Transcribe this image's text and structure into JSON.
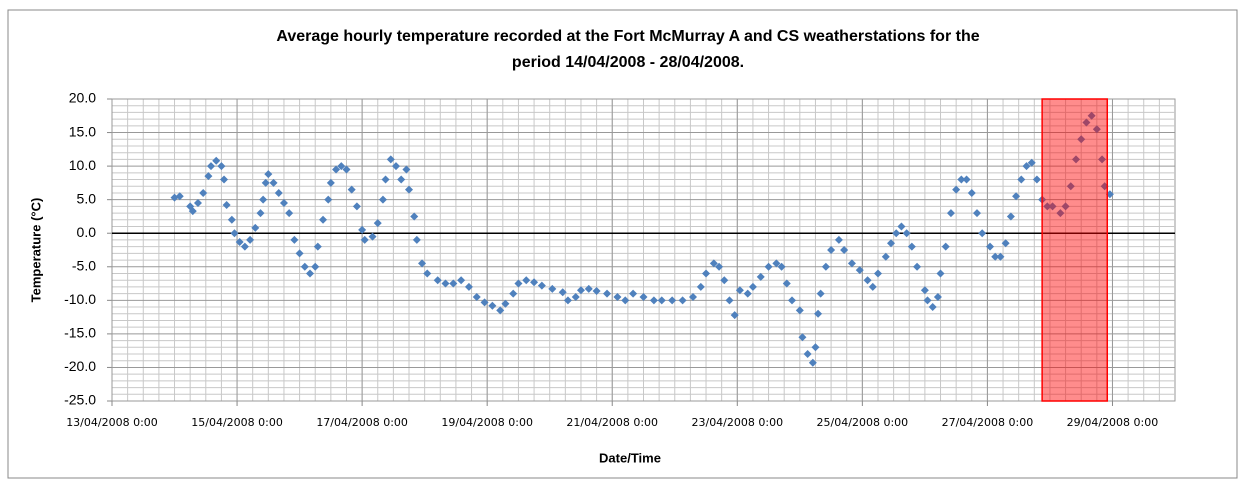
{
  "chart_data": {
    "type": "scatter",
    "title": [
      "Average hourly temperature recorded at the Fort McMurray A and CS weatherstations for the",
      "period 14/04/2008 - 28/04/2008."
    ],
    "x_label": "Date/Time",
    "y_label": "Temperature (°C)",
    "color": "#4f81bd",
    "grid": true,
    "minor_grid": true,
    "xlim": [
      "13/04/2008 0:00",
      "30/04/2008 0:00"
    ],
    "xticks": [
      "13/04/2008 0:00",
      "15/04/2008 0:00",
      "17/04/2008 0:00",
      "19/04/2008 0:00",
      "21/04/2008 0:00",
      "23/04/2008 0:00",
      "25/04/2008 0:00",
      "27/04/2008 0:00",
      "29/04/2008 0:00"
    ],
    "ylim": [
      -25,
      20
    ],
    "yticks": [
      {
        "value": -25,
        "label": "-25.0"
      },
      {
        "value": -20,
        "label": "-20.0"
      },
      {
        "value": -15,
        "label": "-15.0"
      },
      {
        "value": -10,
        "label": "-10.0"
      },
      {
        "value": -5,
        "label": "-5.0"
      },
      {
        "value": 0,
        "label": "0.0"
      },
      {
        "value": 5,
        "label": "5.0"
      },
      {
        "value": 10,
        "label": "10.0"
      },
      {
        "value": 15,
        "label": "15.0"
      },
      {
        "value": 20,
        "label": "20.0"
      }
    ],
    "highlight": {
      "start": "27/04/2008 21:00",
      "end": "28/04/2008 22:00",
      "color": "#ff0000"
    },
    "x": [
      "14/04/2008 0:00",
      "14/04/2008 2:00",
      "14/04/2008 6:00",
      "14/04/2008 7:00",
      "14/04/2008 9:00",
      "14/04/2008 11:00",
      "14/04/2008 13:00",
      "14/04/2008 14:00",
      "14/04/2008 16:00",
      "14/04/2008 18:00",
      "14/04/2008 19:00",
      "14/04/2008 20:00",
      "14/04/2008 22:00",
      "14/04/2008 23:00",
      "15/04/2008 1:00",
      "15/04/2008 3:00",
      "15/04/2008 5:00",
      "15/04/2008 7:00",
      "15/04/2008 9:00",
      "15/04/2008 10:00",
      "15/04/2008 11:00",
      "15/04/2008 12:00",
      "15/04/2008 14:00",
      "15/04/2008 16:00",
      "15/04/2008 18:00",
      "15/04/2008 20:00",
      "15/04/2008 22:00",
      "16/04/2008 0:00",
      "16/04/2008 2:00",
      "16/04/2008 4:00",
      "16/04/2008 6:00",
      "16/04/2008 7:00",
      "16/04/2008 9:00",
      "16/04/2008 11:00",
      "16/04/2008 12:00",
      "16/04/2008 14:00",
      "16/04/2008 16:00",
      "16/04/2008 18:00",
      "16/04/2008 20:00",
      "16/04/2008 22:00",
      "17/04/2008 0:00",
      "17/04/2008 1:00",
      "17/04/2008 4:00",
      "17/04/2008 6:00",
      "17/04/2008 8:00",
      "17/04/2008 9:00",
      "17/04/2008 11:00",
      "17/04/2008 13:00",
      "17/04/2008 15:00",
      "17/04/2008 17:00",
      "17/04/2008 18:00",
      "17/04/2008 20:00",
      "17/04/2008 21:00",
      "17/04/2008 23:00",
      "18/04/2008 1:00",
      "18/04/2008 5:00",
      "18/04/2008 8:00",
      "18/04/2008 11:00",
      "18/04/2008 14:00",
      "18/04/2008 17:00",
      "18/04/2008 20:00",
      "18/04/2008 23:00",
      "19/04/2008 2:00",
      "19/04/2008 5:00",
      "19/04/2008 7:00",
      "19/04/2008 10:00",
      "19/04/2008 12:00",
      "19/04/2008 15:00",
      "19/04/2008 18:00",
      "19/04/2008 21:00",
      "20/04/2008 1:00",
      "20/04/2008 5:00",
      "20/04/2008 7:00",
      "20/04/2008 10:00",
      "20/04/2008 12:00",
      "20/04/2008 15:00",
      "20/04/2008 18:00",
      "20/04/2008 22:00",
      "21/04/2008 2:00",
      "21/04/2008 5:00",
      "21/04/2008 8:00",
      "21/04/2008 12:00",
      "21/04/2008 16:00",
      "21/04/2008 19:00",
      "21/04/2008 23:00",
      "22/04/2008 3:00",
      "22/04/2008 7:00",
      "22/04/2008 10:00",
      "22/04/2008 12:00",
      "22/04/2008 15:00",
      "22/04/2008 17:00",
      "22/04/2008 19:00",
      "22/04/2008 21:00",
      "22/04/2008 23:00",
      "23/04/2008 1:00",
      "23/04/2008 4:00",
      "23/04/2008 6:00",
      "23/04/2008 9:00",
      "23/04/2008 12:00",
      "23/04/2008 15:00",
      "23/04/2008 17:00",
      "23/04/2008 19:00",
      "23/04/2008 21:00",
      "24/04/2008 0:00",
      "24/04/2008 1:00",
      "24/04/2008 3:00",
      "24/04/2008 5:00",
      "24/04/2008 6:00",
      "24/04/2008 7:00",
      "24/04/2008 8:00",
      "24/04/2008 10:00",
      "24/04/2008 12:00",
      "24/04/2008 15:00",
      "24/04/2008 17:00",
      "24/04/2008 20:00",
      "24/04/2008 23:00",
      "25/04/2008 2:00",
      "25/04/2008 4:00",
      "25/04/2008 6:00",
      "25/04/2008 9:00",
      "25/04/2008 11:00",
      "25/04/2008 13:00",
      "25/04/2008 15:00",
      "25/04/2008 17:00",
      "25/04/2008 19:00",
      "25/04/2008 21:00",
      "26/04/2008 0:00",
      "26/04/2008 1:00",
      "26/04/2008 3:00",
      "26/04/2008 5:00",
      "26/04/2008 6:00",
      "26/04/2008 8:00",
      "26/04/2008 10:00",
      "26/04/2008 12:00",
      "26/04/2008 14:00",
      "26/04/2008 16:00",
      "26/04/2008 18:00",
      "26/04/2008 20:00",
      "26/04/2008 22:00",
      "27/04/2008 1:00",
      "27/04/2008 3:00",
      "27/04/2008 5:00",
      "27/04/2008 7:00",
      "27/04/2008 9:00",
      "27/04/2008 11:00",
      "27/04/2008 13:00",
      "27/04/2008 15:00",
      "27/04/2008 17:00",
      "27/04/2008 19:00",
      "27/04/2008 21:00",
      "27/04/2008 23:00",
      "28/04/2008 1:00",
      "28/04/2008 4:00",
      "28/04/2008 6:00",
      "28/04/2008 8:00",
      "28/04/2008 10:00",
      "28/04/2008 12:00",
      "28/04/2008 14:00",
      "28/04/2008 16:00",
      "28/04/2008 18:00",
      "28/04/2008 20:00",
      "28/04/2008 21:00",
      "28/04/2008 23:00"
    ],
    "values": [
      5.3,
      5.5,
      4,
      3.3,
      4.5,
      6,
      8.5,
      10,
      10.8,
      10,
      8,
      4.2,
      2,
      0,
      -1.3,
      -2,
      -1,
      0.8,
      3,
      5,
      7.5,
      8.8,
      7.5,
      6,
      4.5,
      3,
      -1,
      -3,
      -5,
      -6,
      -5,
      -2,
      2,
      5,
      7.5,
      9.5,
      10,
      9.5,
      6.5,
      4,
      0.5,
      -1,
      -0.5,
      1.5,
      5,
      8,
      11,
      10,
      8,
      9.5,
      6.5,
      2.5,
      -1,
      -4.5,
      -6,
      -7,
      -7.5,
      -7.5,
      -7,
      -8,
      -9.5,
      -10.3,
      -10.8,
      -11.5,
      -10.5,
      -9,
      -7.5,
      -7,
      -7.3,
      -7.8,
      -8.3,
      -8.8,
      -10,
      -9.5,
      -8.5,
      -8.3,
      -8.6,
      -9,
      -9.5,
      -10,
      -9,
      -9.5,
      -10,
      -10,
      -10,
      -10,
      -9.5,
      -8,
      -6,
      -4.5,
      -5,
      -7,
      -10,
      -12.2,
      -8.5,
      -9,
      -8,
      -6.5,
      -5,
      -4.5,
      -5,
      -7.5,
      -10,
      -11.5,
      -15.5,
      -18,
      -19.3,
      -17,
      -12,
      -9,
      -5,
      -2.5,
      -1,
      -2.5,
      -4.5,
      -5.5,
      -7,
      -8,
      -6,
      -3.5,
      -1.5,
      0,
      1,
      0,
      -2,
      -5,
      -8.5,
      -10,
      -11,
      -9.5,
      -6,
      -2,
      3,
      6.5,
      8,
      8,
      6,
      3,
      0,
      -2,
      -3.5,
      -3.5,
      -1.5,
      2.5,
      5.5,
      8,
      10,
      10.5,
      8,
      5,
      4,
      4,
      3,
      4,
      7,
      11,
      14,
      16.5,
      17.5,
      15.5,
      11,
      7,
      5.8
    ]
  }
}
